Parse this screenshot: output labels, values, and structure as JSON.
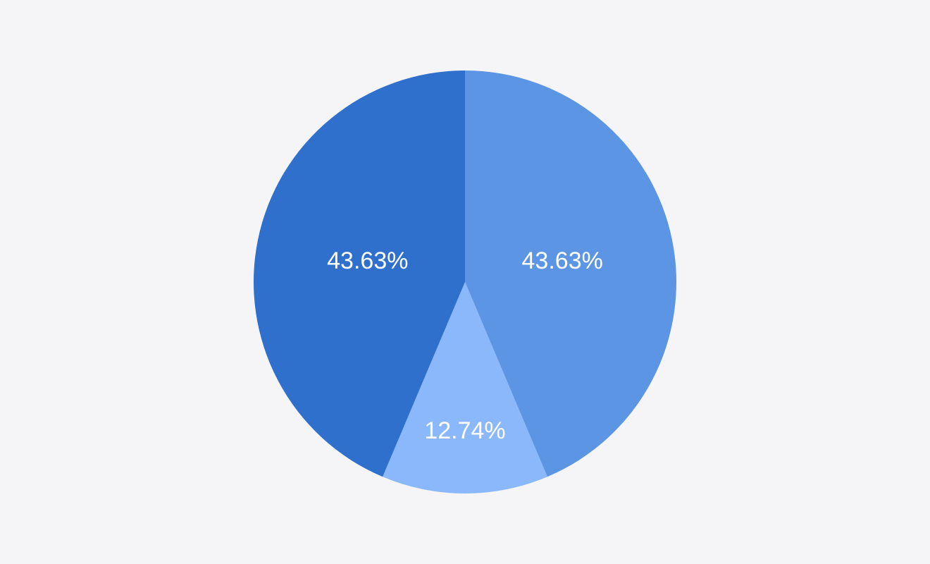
{
  "chart_data": {
    "type": "pie",
    "title": "",
    "slices": [
      {
        "value": 43.63,
        "label": "43.63%",
        "color": "#5b95e3"
      },
      {
        "value": 12.74,
        "label": "12.74%",
        "color": "#8ab8fb"
      },
      {
        "value": 43.63,
        "label": "43.63%",
        "color": "#2e70cc"
      }
    ],
    "start": "top",
    "direction": "clockwise",
    "legend": "none",
    "background": "#f5f5f7"
  }
}
